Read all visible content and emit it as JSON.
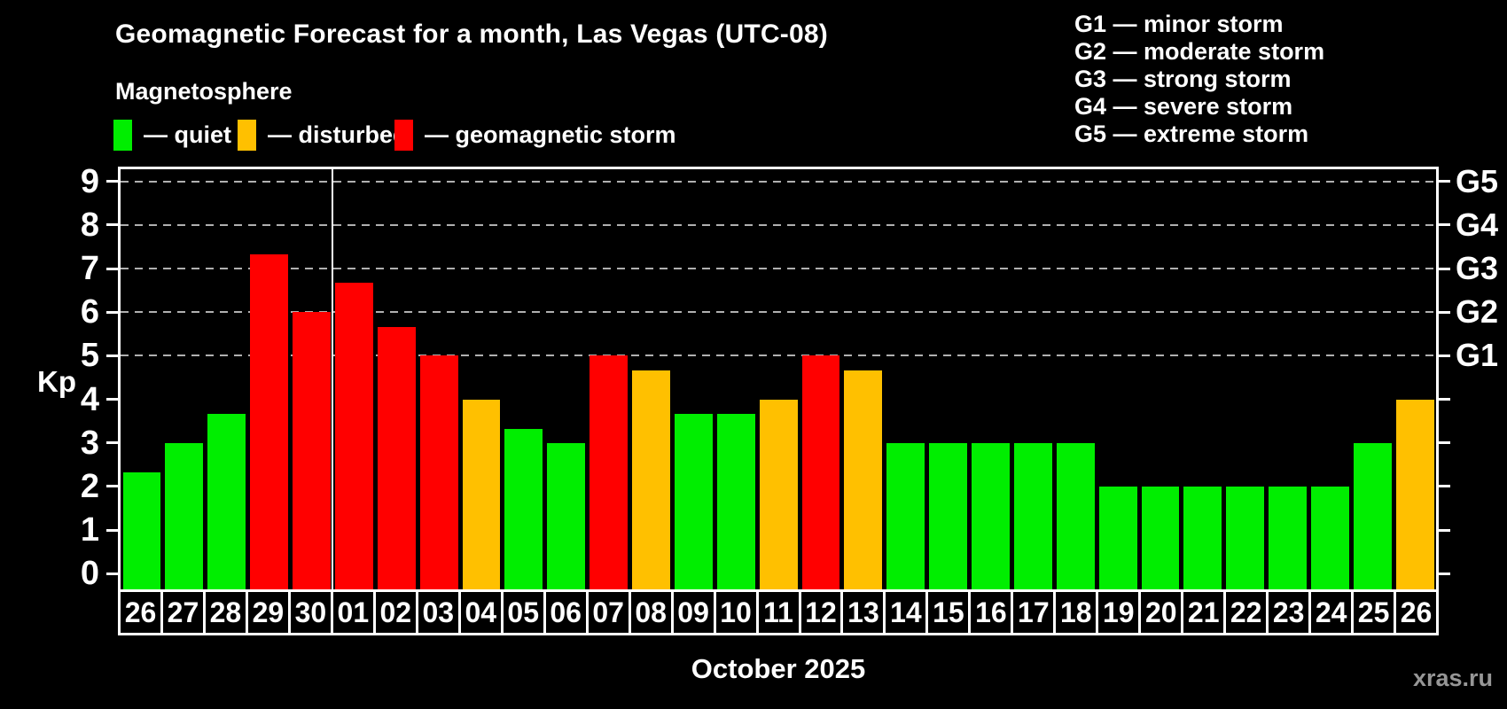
{
  "header": {
    "title": "Geomagnetic Forecast for a month, Las Vegas (UTC-08)",
    "subtitle": "Magnetosphere"
  },
  "legend": {
    "items": [
      {
        "label": "— quiet",
        "status": "quiet",
        "color": "#00ee00"
      },
      {
        "label": "— disturbed",
        "status": "disturbed",
        "color": "#ffc000"
      },
      {
        "label": "— geomagnetic storm",
        "status": "storm",
        "color": "#ff0000"
      }
    ]
  },
  "g_legend": {
    "lines": [
      "G1 — minor storm",
      "G2 — moderate storm",
      "G3 — strong storm",
      "G4 — severe storm",
      "G5 — extreme storm"
    ]
  },
  "axis": {
    "kp_label": "Kp",
    "yticks": [
      0,
      1,
      2,
      3,
      4,
      5,
      6,
      7,
      8,
      9
    ]
  },
  "footer": {
    "month_label": "October 2025",
    "watermark": "xras.ru"
  },
  "chart_data": {
    "type": "bar",
    "title": "Geomagnetic Forecast for a month, Las Vegas (UTC-08)",
    "subtitle": "Magnetosphere",
    "xlabel": "October 2025",
    "ylabel": "Kp",
    "ylim": [
      0,
      9
    ],
    "grid": "dashed horizontal lines at Kp 5-9 only",
    "legend_position": "top-left",
    "categories": [
      "26",
      "27",
      "28",
      "29",
      "30",
      "01",
      "02",
      "03",
      "04",
      "05",
      "06",
      "07",
      "08",
      "09",
      "10",
      "11",
      "12",
      "13",
      "14",
      "15",
      "16",
      "17",
      "18",
      "19",
      "20",
      "21",
      "22",
      "23",
      "24",
      "25",
      "26"
    ],
    "values": [
      2.33,
      3,
      3.67,
      7.33,
      6,
      6.67,
      5.67,
      5,
      4,
      3.33,
      3,
      5,
      4.67,
      3.67,
      3.67,
      4,
      5,
      4.67,
      3,
      3,
      3,
      3,
      3,
      2,
      2,
      2,
      2,
      2,
      2,
      3,
      4
    ],
    "statuses": [
      "quiet",
      "quiet",
      "quiet",
      "storm",
      "storm",
      "storm",
      "storm",
      "storm",
      "disturbed",
      "quiet",
      "quiet",
      "storm",
      "disturbed",
      "quiet",
      "quiet",
      "disturbed",
      "storm",
      "disturbed",
      "quiet",
      "quiet",
      "quiet",
      "quiet",
      "quiet",
      "quiet",
      "quiet",
      "quiet",
      "quiet",
      "quiet",
      "quiet",
      "quiet",
      "disturbed"
    ],
    "colors": {
      "quiet": "#00ee00",
      "disturbed": "#ffc000",
      "storm": "#ff0000"
    },
    "g_levels": [
      {
        "label": "G1",
        "kp": 5
      },
      {
        "label": "G2",
        "kp": 6
      },
      {
        "label": "G3",
        "kp": 7
      },
      {
        "label": "G4",
        "kp": 8
      },
      {
        "label": "G5",
        "kp": 9
      }
    ],
    "month_divider_after_index": 4
  }
}
